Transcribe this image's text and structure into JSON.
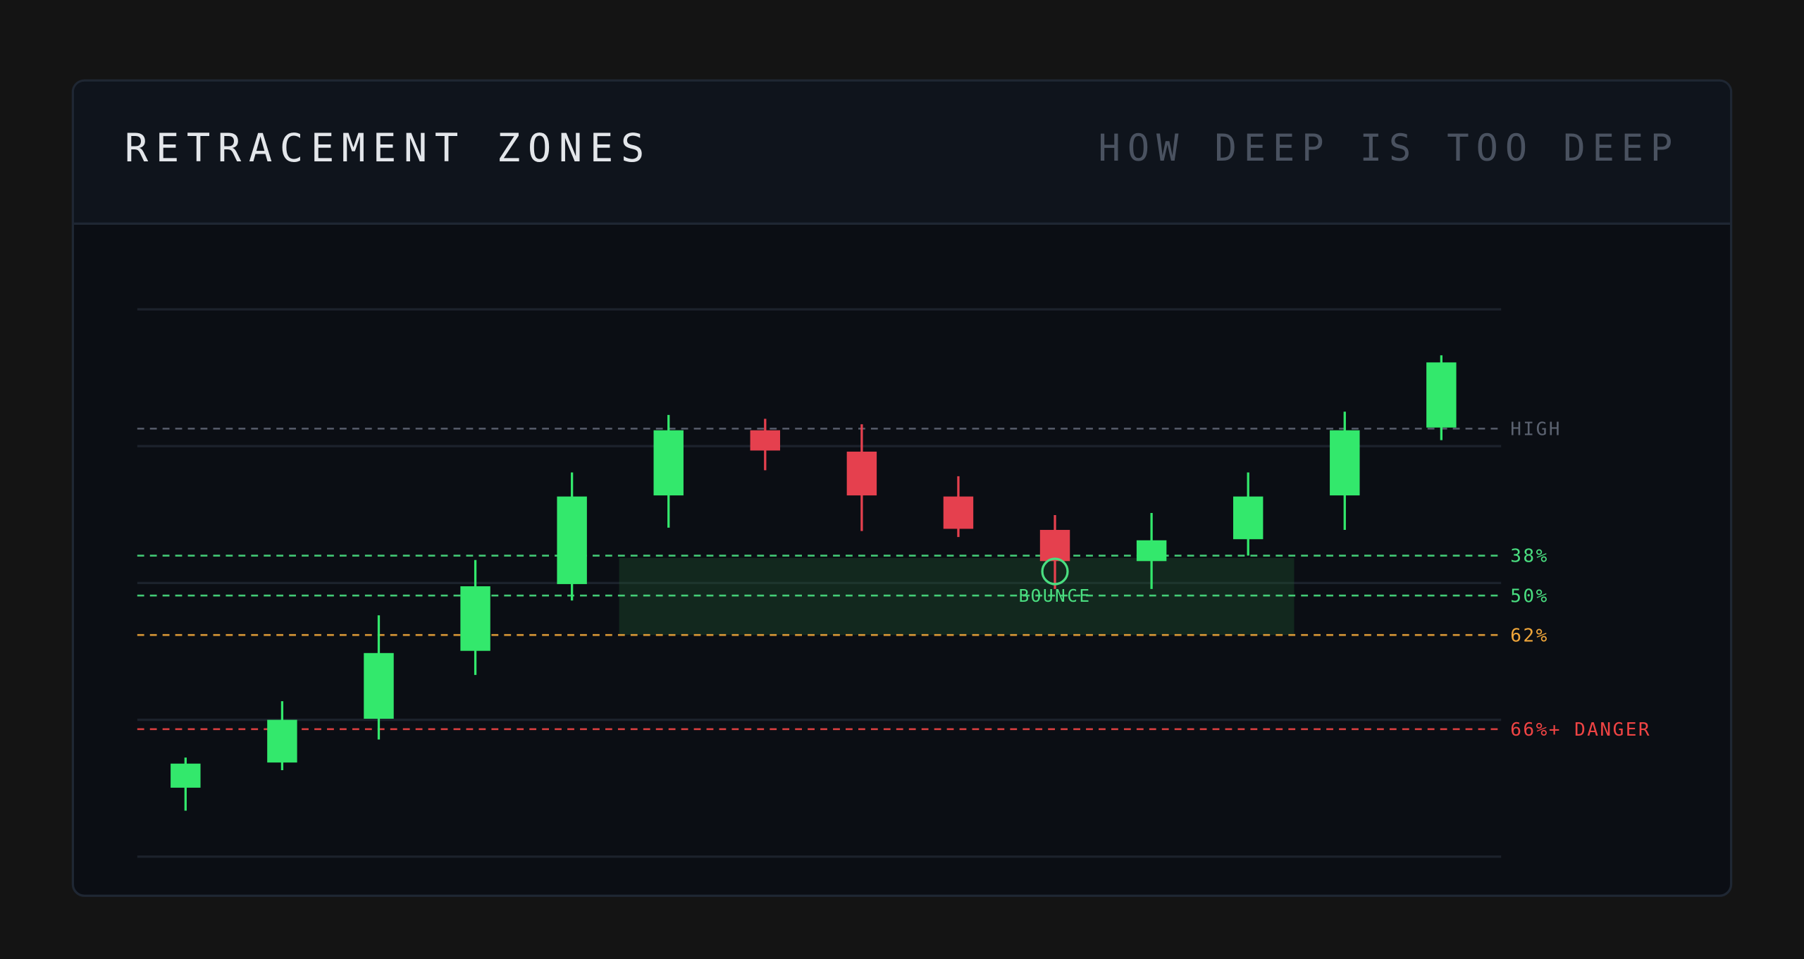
{
  "chart_data": {
    "type": "candlestick",
    "title": "RETRACEMENT ZONES",
    "subtitle": "HOW DEEP IS TOO DEEP",
    "categories": [
      null,
      null,
      null,
      null,
      null,
      null,
      null,
      null,
      null,
      null,
      null,
      null,
      null,
      null
    ],
    "open": [
      12.6,
      17.2,
      25.2,
      37.6,
      49.8,
      66.0,
      77.9,
      74.0,
      65.8,
      59.7,
      54.0,
      58.0,
      66.0,
      78.4
    ],
    "high": [
      18.1,
      28.4,
      44.1,
      54.2,
      70.2,
      80.7,
      80.0,
      79.0,
      69.5,
      62.4,
      62.8,
      70.2,
      81.3,
      91.6
    ],
    "low": [
      8.4,
      15.8,
      21.4,
      33.2,
      46.8,
      60.1,
      70.6,
      59.5,
      58.4,
      48.9,
      48.9,
      55.0,
      59.7,
      76.1
    ],
    "close": [
      17.0,
      25.0,
      37.2,
      49.4,
      65.8,
      77.9,
      74.2,
      66.0,
      59.9,
      54.0,
      57.8,
      65.8,
      77.9,
      90.3
    ],
    "up_color": "#33e86c",
    "down_color": "#e5404e",
    "ylim": [
      0,
      100
    ],
    "yticks": [
      0,
      25,
      50,
      75,
      100
    ],
    "grid": true,
    "levels": [
      {
        "value": 78.2,
        "label": "HIGH",
        "color": "#5b6270"
      },
      {
        "value": 55.0,
        "label": "38%",
        "color": "#4ade80"
      },
      {
        "value": 47.7,
        "label": "50%",
        "color": "#4ade80"
      },
      {
        "value": 40.5,
        "label": "62%",
        "color": "#f0a63a"
      },
      {
        "value": 23.3,
        "label": "66%+ DANGER",
        "color": "#ef4444"
      }
    ],
    "annotation": "BOUNCE"
  }
}
